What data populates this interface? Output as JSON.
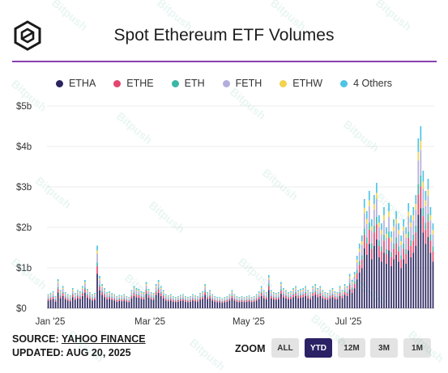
{
  "header": {
    "title": "Spot Ethereum ETF Volumes"
  },
  "legend": [
    {
      "label": "ETHA",
      "color": "#2a2560"
    },
    {
      "label": "ETHE",
      "color": "#e2476e"
    },
    {
      "label": "ETH",
      "color": "#3bb7a6"
    },
    {
      "label": "FETH",
      "color": "#b3aedc"
    },
    {
      "label": "ETHW",
      "color": "#f2d24e"
    },
    {
      "label": "4 Others",
      "color": "#4cc4e4"
    }
  ],
  "footer": {
    "source_prefix": "SOURCE:",
    "source_name": "YAHOO FINANCE",
    "updated": "UPDATED: AUG 20, 2025"
  },
  "zoom": {
    "label": "ZOOM",
    "buttons": [
      "ALL",
      "YTD",
      "12M",
      "3M",
      "1M"
    ],
    "active": "YTD"
  },
  "watermark": "Bitpush",
  "chart_data": {
    "type": "bar",
    "stacked": true,
    "yticks": [
      "$0",
      "$1b",
      "$2b",
      "$3b",
      "$4b",
      "$5b"
    ],
    "ylim": [
      0,
      5
    ],
    "y_unit": "$b",
    "xticks": [
      "Jan '25",
      "Mar '25",
      "May '25",
      "Jul '25"
    ],
    "grid": "horizontal",
    "legend_position": "top",
    "categories": [
      "Jan 02",
      "Jan 03",
      "Jan 06",
      "Jan 07",
      "Jan 08",
      "Jan 10",
      "Jan 13",
      "Jan 14",
      "Jan 15",
      "Jan 16",
      "Jan 17",
      "Jan 21",
      "Jan 22",
      "Jan 23",
      "Jan 24",
      "Jan 27",
      "Jan 28",
      "Jan 29",
      "Jan 30",
      "Jan 31",
      "Feb 03",
      "Feb 04",
      "Feb 05",
      "Feb 06",
      "Feb 07",
      "Feb 10",
      "Feb 11",
      "Feb 12",
      "Feb 13",
      "Feb 14",
      "Feb 18",
      "Feb 19",
      "Feb 20",
      "Feb 21",
      "Feb 24",
      "Feb 25",
      "Feb 26",
      "Feb 27",
      "Feb 28",
      "Mar 03",
      "Mar 04",
      "Mar 05",
      "Mar 06",
      "Mar 07",
      "Mar 10",
      "Mar 11",
      "Mar 12",
      "Mar 13",
      "Mar 14",
      "Mar 17",
      "Mar 18",
      "Mar 19",
      "Mar 20",
      "Mar 21",
      "Mar 24",
      "Mar 25",
      "Mar 26",
      "Mar 27",
      "Mar 28",
      "Mar 31",
      "Apr 01",
      "Apr 02",
      "Apr 03",
      "Apr 04",
      "Apr 07",
      "Apr 08",
      "Apr 09",
      "Apr 10",
      "Apr 11",
      "Apr 14",
      "Apr 15",
      "Apr 16",
      "Apr 17",
      "Apr 21",
      "Apr 22",
      "Apr 23",
      "Apr 24",
      "Apr 25",
      "Apr 28",
      "Apr 29",
      "Apr 30",
      "May 01",
      "May 02",
      "May 05",
      "May 06",
      "May 07",
      "May 08",
      "May 09",
      "May 12",
      "May 13",
      "May 14",
      "May 15",
      "May 16",
      "May 19",
      "May 20",
      "May 21",
      "May 22",
      "May 23",
      "May 27",
      "May 28",
      "May 29",
      "May 30",
      "Jun 02",
      "Jun 03",
      "Jun 04",
      "Jun 05",
      "Jun 06",
      "Jun 09",
      "Jun 10",
      "Jun 11",
      "Jun 12",
      "Jun 13",
      "Jun 16",
      "Jun 17",
      "Jun 18",
      "Jun 20",
      "Jun 23",
      "Jun 24",
      "Jun 25",
      "Jun 26",
      "Jun 27",
      "Jun 30",
      "Jul 01",
      "Jul 02",
      "Jul 03",
      "Jul 07",
      "Jul 08",
      "Jul 09",
      "Jul 10",
      "Jul 11",
      "Jul 14",
      "Jul 15",
      "Jul 16",
      "Jul 17",
      "Jul 18",
      "Jul 21",
      "Jul 22",
      "Jul 23",
      "Jul 24",
      "Jul 25",
      "Jul 28",
      "Jul 29",
      "Jul 30",
      "Jul 31",
      "Aug 01",
      "Aug 04",
      "Aug 05",
      "Aug 06",
      "Aug 07",
      "Aug 08",
      "Aug 11",
      "Aug 12",
      "Aug 13",
      "Aug 14",
      "Aug 15",
      "Aug 18",
      "Aug 19",
      "Aug 20"
    ],
    "totals": [
      0.35,
      0.38,
      0.42,
      0.3,
      0.72,
      0.45,
      0.55,
      0.4,
      0.35,
      0.32,
      0.5,
      0.38,
      0.45,
      0.42,
      0.55,
      0.7,
      0.48,
      0.4,
      0.35,
      0.38,
      1.55,
      0.8,
      0.6,
      0.5,
      0.4,
      0.42,
      0.38,
      0.35,
      0.3,
      0.33,
      0.32,
      0.35,
      0.3,
      0.28,
      0.45,
      0.55,
      0.5,
      0.48,
      0.42,
      0.4,
      0.65,
      0.48,
      0.4,
      0.38,
      0.6,
      0.7,
      0.55,
      0.45,
      0.35,
      0.32,
      0.35,
      0.3,
      0.28,
      0.3,
      0.33,
      0.35,
      0.3,
      0.28,
      0.3,
      0.35,
      0.32,
      0.3,
      0.38,
      0.42,
      0.6,
      0.4,
      0.45,
      0.35,
      0.3,
      0.28,
      0.28,
      0.25,
      0.28,
      0.3,
      0.35,
      0.45,
      0.35,
      0.3,
      0.28,
      0.3,
      0.28,
      0.3,
      0.32,
      0.28,
      0.3,
      0.35,
      0.42,
      0.55,
      0.45,
      0.4,
      0.82,
      0.45,
      0.4,
      0.38,
      0.4,
      0.65,
      0.5,
      0.45,
      0.4,
      0.42,
      0.5,
      0.55,
      0.45,
      0.48,
      0.5,
      0.55,
      0.45,
      0.4,
      0.55,
      0.6,
      0.5,
      0.55,
      0.45,
      0.4,
      0.38,
      0.45,
      0.5,
      0.42,
      0.4,
      0.55,
      0.45,
      0.6,
      0.55,
      0.85,
      0.7,
      0.9,
      1.3,
      1.6,
      1.8,
      2.7,
      2.4,
      2.9,
      2.2,
      2.8,
      3.1,
      2.3,
      2.1,
      2.5,
      2.0,
      2.6,
      1.9,
      2.2,
      2.4,
      2.1,
      1.8,
      2.2,
      2.0,
      2.6,
      2.3,
      2.5,
      2.8,
      4.2,
      4.5,
      3.4,
      2.9,
      3.2,
      2.5,
      2.1
    ]
  }
}
